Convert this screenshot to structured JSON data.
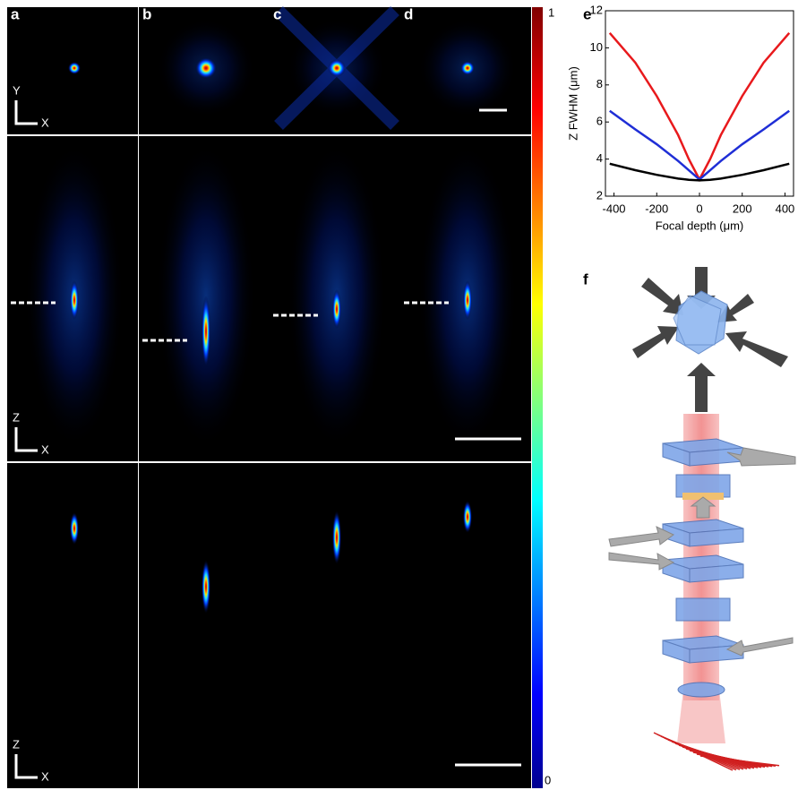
{
  "figure": {
    "panels": [
      "a",
      "b",
      "c",
      "d"
    ],
    "row_axes": [
      [
        "Y",
        "X"
      ],
      [
        "Z",
        "X"
      ],
      [
        "Z",
        "X"
      ]
    ],
    "colorbar": {
      "max": "1",
      "min": "0"
    },
    "panel_f": "f"
  },
  "chart_data": {
    "type": "line",
    "panel_label": "e",
    "xlabel": "Focal depth (μm)",
    "ylabel": "Z FWHM (μm)",
    "x": [
      -420,
      -300,
      -200,
      -100,
      -50,
      0,
      50,
      100,
      200,
      300,
      420
    ],
    "series": [
      {
        "color": "#e8191c",
        "values": [
          10.8,
          9.2,
          7.4,
          5.3,
          4.0,
          2.9,
          4.0,
          5.3,
          7.4,
          9.2,
          10.8
        ]
      },
      {
        "color": "#1f2ed6",
        "values": [
          6.6,
          5.6,
          4.8,
          3.9,
          3.4,
          2.9,
          3.4,
          3.9,
          4.8,
          5.6,
          6.6
        ]
      },
      {
        "color": "#000000",
        "values": [
          3.75,
          3.4,
          3.15,
          2.95,
          2.88,
          2.85,
          2.88,
          2.95,
          3.15,
          3.4,
          3.75
        ]
      }
    ],
    "xlim": [
      -440,
      440
    ],
    "ylim": [
      2,
      12
    ],
    "xticks": [
      -400,
      -200,
      0,
      200,
      400
    ],
    "yticks": [
      2,
      4,
      6,
      8,
      10,
      12
    ]
  }
}
